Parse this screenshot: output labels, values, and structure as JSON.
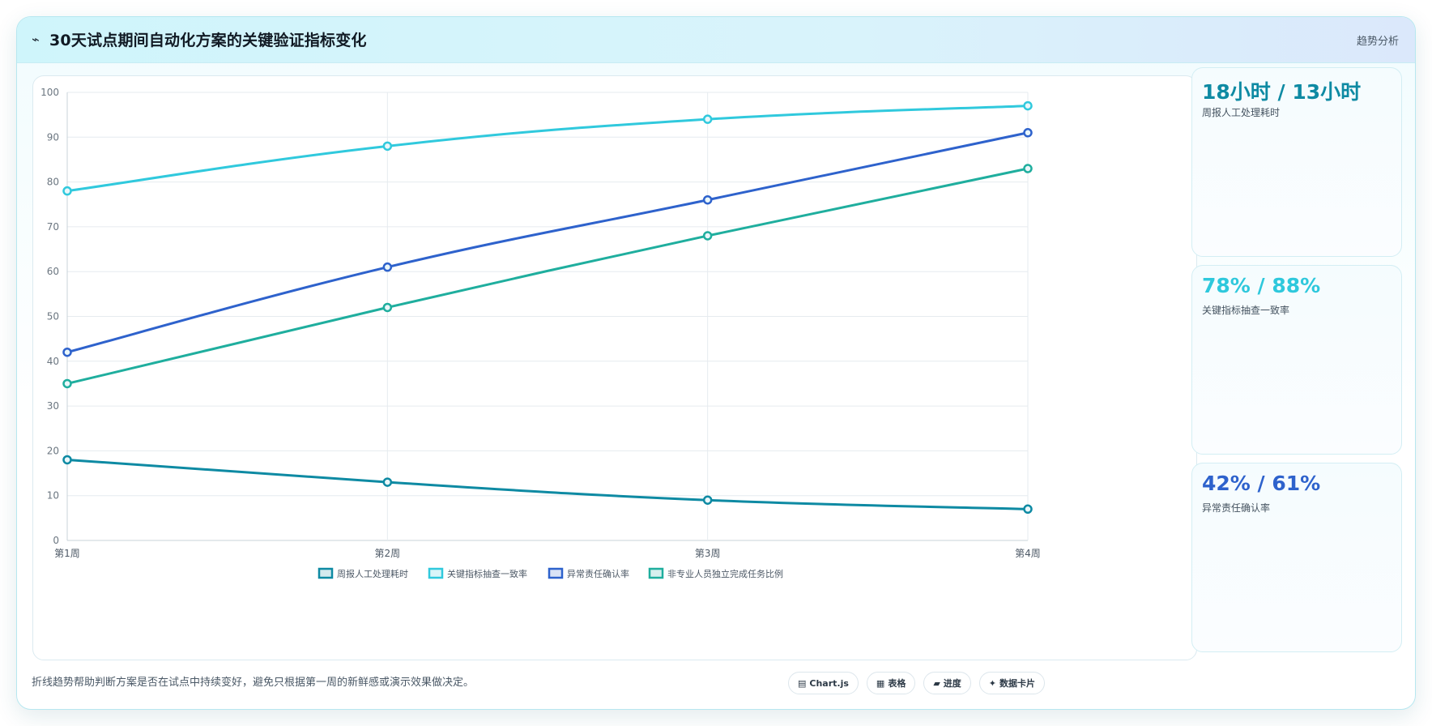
{
  "header": {
    "icon": "⌁",
    "title": "30天试点期间自动化方案的关键验证指标变化",
    "tag": "趋势分析"
  },
  "stats": [
    {
      "value": "18小时 / 13小时",
      "label": "周报人工处理耗时",
      "color": "#0e8aa3"
    },
    {
      "value": "78% / 88%",
      "label": "关键指标抽查一致率",
      "color": "#2ec8dc"
    },
    {
      "value": "42% / 61%",
      "label": "异常责任确认率",
      "color": "#2e62cc"
    }
  ],
  "footnote": "折线趋势帮助判断方案是否在试点中持续变好，避免只根据第一周的新鲜感或演示效果做决定。",
  "chips": [
    {
      "icon": "▤",
      "label": "Chart.js"
    },
    {
      "icon": "▦",
      "label": "表格"
    },
    {
      "icon": "▰",
      "label": "进度"
    },
    {
      "icon": "✦",
      "label": "数据卡片"
    }
  ],
  "chart_data": {
    "type": "line",
    "categories": [
      "第1周",
      "第2周",
      "第3周",
      "第4周"
    ],
    "ylim": [
      0,
      100
    ],
    "yticks": [
      0,
      10,
      20,
      30,
      40,
      50,
      60,
      70,
      80,
      90,
      100
    ],
    "grid": true,
    "legend_position": "bottom",
    "series": [
      {
        "name": "周报人工处理耗时",
        "values": [
          18,
          13,
          9,
          7
        ],
        "color": "#0e8aa3"
      },
      {
        "name": "关键指标抽查一致率",
        "values": [
          78,
          88,
          94,
          97
        ],
        "color": "#30c9dd"
      },
      {
        "name": "异常责任确认率",
        "values": [
          42,
          61,
          76,
          91
        ],
        "color": "#2e62cc"
      },
      {
        "name": "非专业人员独立完成任务比例",
        "values": [
          35,
          52,
          68,
          83
        ],
        "color": "#1fae9e"
      }
    ]
  }
}
